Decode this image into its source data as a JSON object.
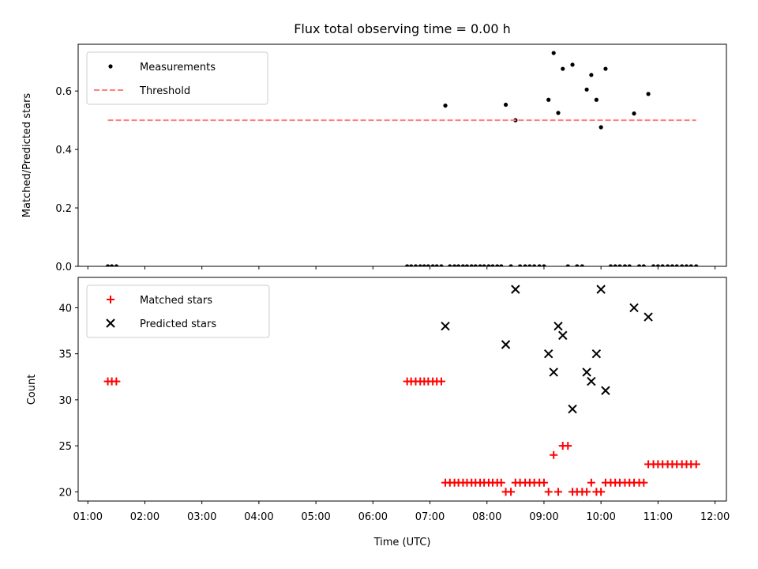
{
  "chart_data": [
    {
      "type": "scatter",
      "title": "Flux total observing time = 0.00 h",
      "xlabel": "",
      "ylabel": "Matched/Predicted stars",
      "ylim": [
        0,
        0.76
      ],
      "yticks": [
        0.0,
        0.2,
        0.4,
        0.6
      ],
      "ytick_labels": [
        "0.0",
        "0.2",
        "0.4",
        "0.6"
      ],
      "xlim_hours": [
        0.83,
        12.2
      ],
      "legend_position": "upper-left",
      "series": [
        {
          "name": "Measurements",
          "kind": "scatter",
          "color": "#000000",
          "marker": "dot",
          "x": [
            1.35,
            1.42,
            1.5,
            6.6,
            6.67,
            6.75,
            6.83,
            6.9,
            6.97,
            7.05,
            7.12,
            7.2,
            7.27,
            7.35,
            7.43,
            7.5,
            7.58,
            7.65,
            7.73,
            7.8,
            7.88,
            7.95,
            8.03,
            8.1,
            8.18,
            8.25,
            8.33,
            8.42,
            8.5,
            8.58,
            8.67,
            8.75,
            8.83,
            8.92,
            9.0,
            9.08,
            9.17,
            9.25,
            9.33,
            9.42,
            9.5,
            9.58,
            9.67,
            9.75,
            9.83,
            9.92,
            10.0,
            10.08,
            10.17,
            10.25,
            10.33,
            10.42,
            10.5,
            10.58,
            10.67,
            10.75,
            10.83,
            10.92,
            11.0,
            11.08,
            11.17,
            11.25,
            11.33,
            11.42,
            11.5,
            11.58,
            11.67
          ],
          "y": [
            0,
            0,
            0,
            0,
            0,
            0,
            0,
            0,
            0,
            0,
            0,
            0,
            0.55,
            0,
            0,
            0,
            0,
            0,
            0,
            0,
            0,
            0,
            0,
            0,
            0,
            0,
            0.553,
            0,
            0.5,
            0,
            0,
            0,
            0,
            0,
            0,
            0.57,
            0.73,
            0.525,
            0.676,
            0,
            0.69,
            0,
            0,
            0.605,
            0.655,
            0.57,
            0.476,
            0.676,
            0,
            0,
            0,
            0,
            0,
            0.523,
            0,
            0,
            0.59,
            0,
            0,
            0,
            0,
            0,
            0,
            0,
            0,
            0,
            0
          ]
        },
        {
          "name": "Threshold",
          "kind": "line",
          "color": "#ff7f7f",
          "dash": "dashed",
          "x": [
            1.35,
            11.67
          ],
          "y": [
            0.5,
            0.5
          ]
        }
      ]
    },
    {
      "type": "scatter",
      "title": "",
      "xlabel": "Time (UTC)",
      "ylabel": "Count",
      "ylim": [
        19,
        43.3
      ],
      "yticks": [
        20,
        25,
        30,
        35,
        40
      ],
      "ytick_labels": [
        "20",
        "25",
        "30",
        "35",
        "40"
      ],
      "xlim_hours": [
        0.83,
        12.2
      ],
      "xticks_hours": [
        1,
        2,
        3,
        4,
        5,
        6,
        7,
        8,
        9,
        10,
        11,
        12
      ],
      "xtick_labels": [
        "01:00",
        "02:00",
        "03:00",
        "04:00",
        "05:00",
        "06:00",
        "07:00",
        "08:00",
        "09:00",
        "10:00",
        "11:00",
        "12:00"
      ],
      "legend_position": "upper-left",
      "series": [
        {
          "name": "Matched stars",
          "kind": "scatter",
          "color": "#ff0000",
          "marker": "plus",
          "x": [
            1.35,
            1.42,
            1.5,
            6.6,
            6.67,
            6.75,
            6.83,
            6.9,
            6.97,
            7.05,
            7.12,
            7.2,
            7.27,
            7.35,
            7.43,
            7.5,
            7.58,
            7.65,
            7.73,
            7.8,
            7.88,
            7.95,
            8.03,
            8.1,
            8.18,
            8.25,
            8.33,
            8.42,
            8.5,
            8.58,
            8.67,
            8.75,
            8.83,
            8.92,
            9.0,
            9.08,
            9.17,
            9.25,
            9.33,
            9.42,
            9.5,
            9.58,
            9.67,
            9.75,
            9.83,
            9.92,
            10.0,
            10.08,
            10.17,
            10.25,
            10.33,
            10.42,
            10.5,
            10.58,
            10.67,
            10.75,
            10.83,
            10.92,
            11.0,
            11.08,
            11.17,
            11.25,
            11.33,
            11.42,
            11.5,
            11.58,
            11.67
          ],
          "y": [
            32,
            32,
            32,
            32,
            32,
            32,
            32,
            32,
            32,
            32,
            32,
            32,
            21,
            21,
            21,
            21,
            21,
            21,
            21,
            21,
            21,
            21,
            21,
            21,
            21,
            21,
            20,
            20,
            21,
            21,
            21,
            21,
            21,
            21,
            21,
            20,
            24,
            20,
            25,
            25,
            20,
            20,
            20,
            20,
            21,
            20,
            20,
            21,
            21,
            21,
            21,
            21,
            21,
            21,
            21,
            21,
            23,
            23,
            23,
            23,
            23,
            23,
            23,
            23,
            23,
            23,
            23
          ]
        },
        {
          "name": "Predicted stars",
          "kind": "scatter",
          "color": "#000000",
          "marker": "x",
          "x": [
            7.27,
            8.33,
            8.5,
            9.08,
            9.17,
            9.25,
            9.33,
            9.5,
            9.75,
            9.83,
            9.92,
            10.0,
            10.08,
            10.58,
            10.83
          ],
          "y": [
            38,
            36,
            42,
            35,
            33,
            38,
            37,
            29,
            33,
            32,
            35,
            42,
            31,
            40,
            39
          ]
        }
      ]
    }
  ]
}
